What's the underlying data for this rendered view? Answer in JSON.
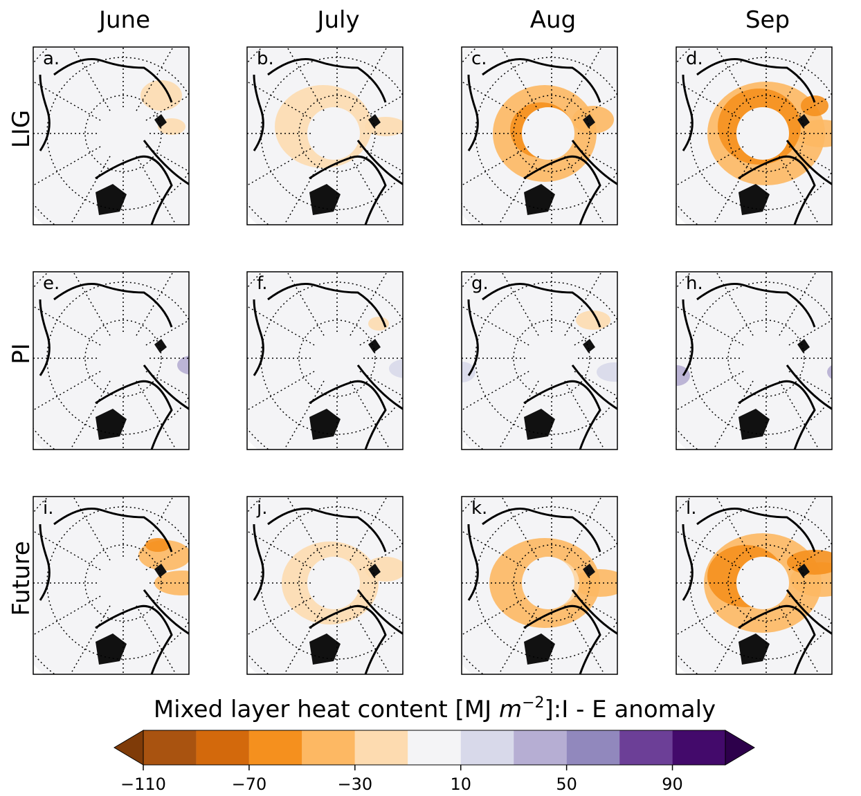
{
  "columns": [
    "June",
    "July",
    "Aug",
    "Sep"
  ],
  "rows": [
    "LIG",
    "PI",
    "Future"
  ],
  "panels": [
    "a.",
    "b.",
    "c.",
    "d.",
    "e.",
    "f.",
    "g.",
    "h.",
    "i.",
    "j.",
    "k.",
    "l."
  ],
  "colorbar": {
    "title": [
      "Mixed layer heat content [MJ ",
      "m",
      "−2",
      "]:I - E anomaly"
    ],
    "bounds": [
      -110,
      -90,
      -70,
      -50,
      -30,
      -10,
      10,
      30,
      50,
      70,
      90,
      110
    ],
    "colors": [
      "#a95310",
      "#d3690c",
      "#f5901e",
      "#fdb863",
      "#fddbb0",
      "#f4f4f6",
      "#d8d9ea",
      "#b6aed3",
      "#9188bd",
      "#6c3f97",
      "#430a6b"
    ],
    "extend_colors": [
      "#7f3b08",
      "#2d004b"
    ],
    "ticks": [
      {
        "value": -110,
        "label": "−110"
      },
      {
        "value": -70,
        "label": "−70"
      },
      {
        "value": -30,
        "label": "−30"
      },
      {
        "value": 10,
        "label": "10"
      },
      {
        "value": 50,
        "label": "50"
      },
      {
        "value": 90,
        "label": "90"
      }
    ]
  }
}
